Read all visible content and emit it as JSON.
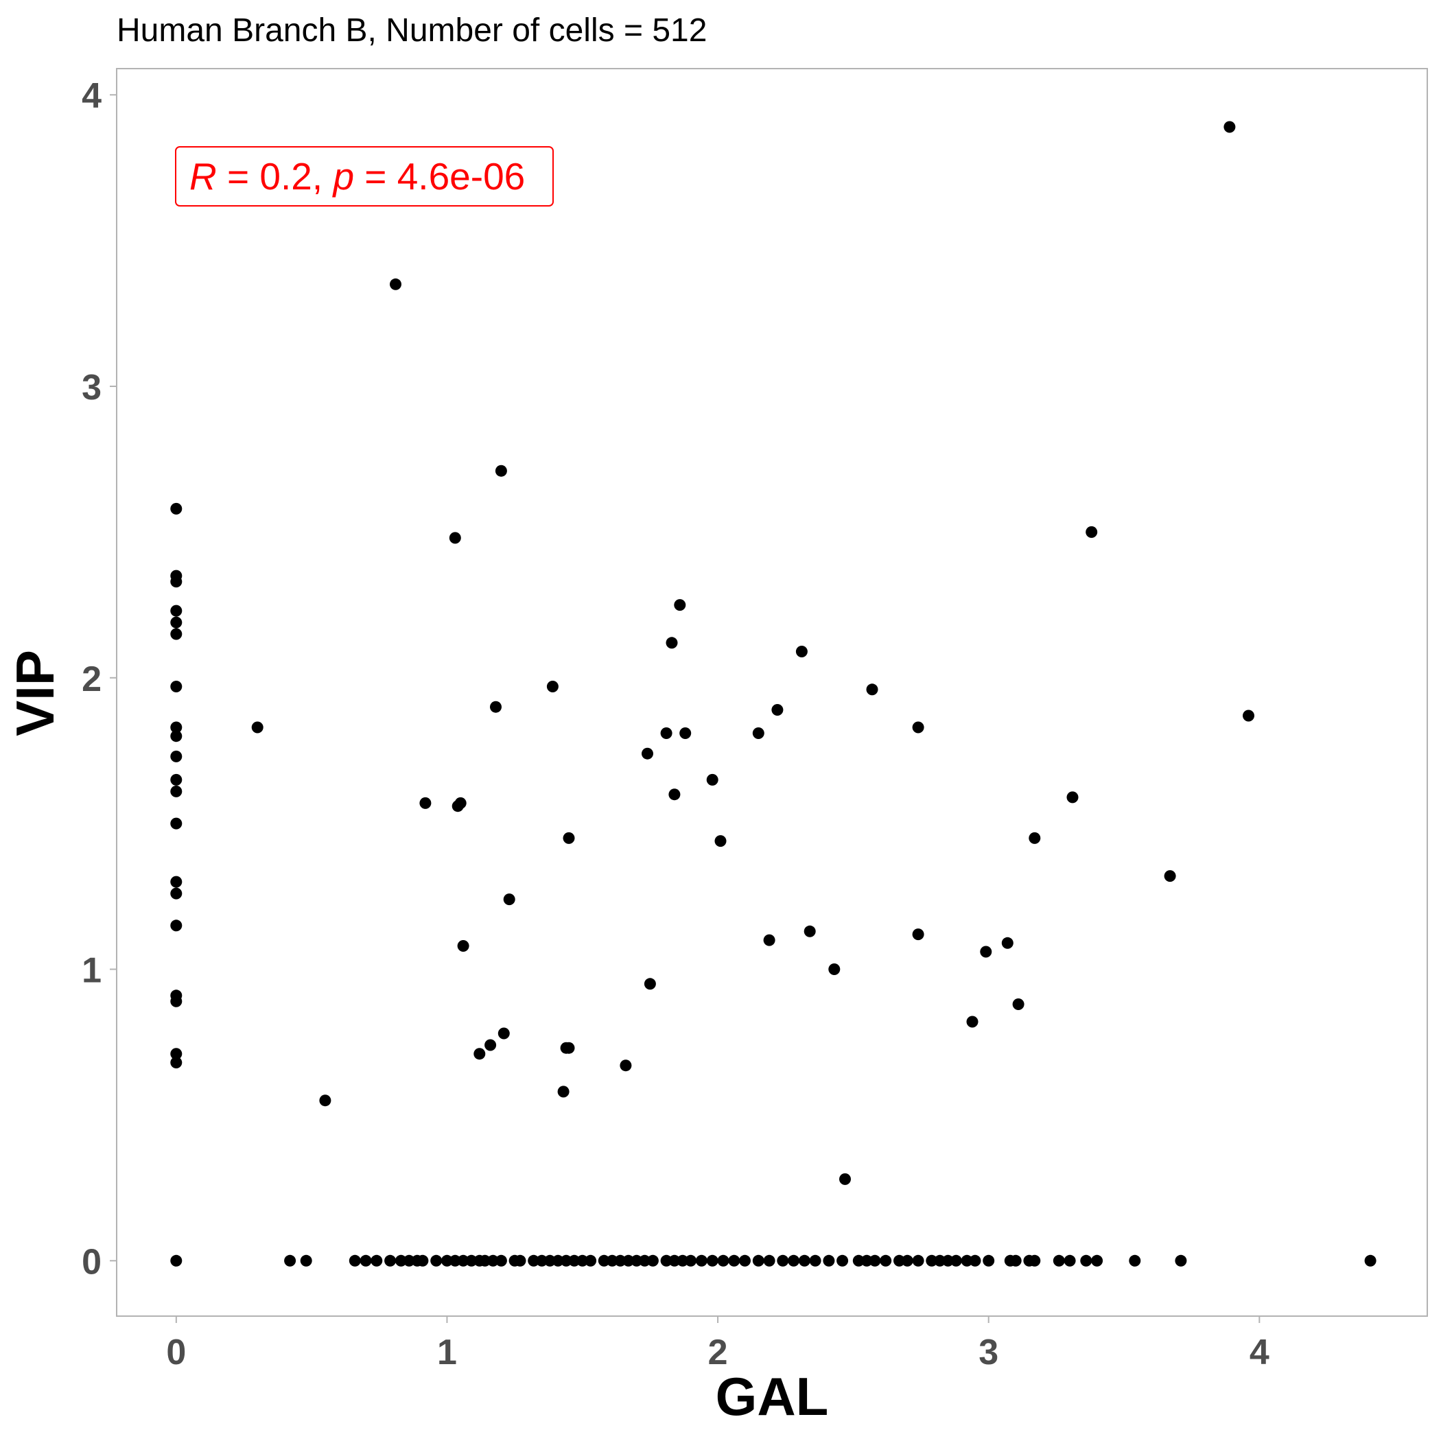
{
  "chart_data": {
    "type": "scatter",
    "title": "Human Branch B, Number of cells = 512",
    "xlabel": "GAL",
    "ylabel": "VIP",
    "xlim": [
      -0.22,
      4.62
    ],
    "ylim": [
      -0.19,
      4.09
    ],
    "x_ticks": [
      0,
      1,
      2,
      3,
      4
    ],
    "x_tick_labels": [
      "0",
      "1",
      "2",
      "3",
      "4"
    ],
    "y_ticks": [
      0,
      1,
      2,
      3,
      4
    ],
    "y_tick_labels": [
      "0",
      "1",
      "2",
      "3",
      "4"
    ],
    "grid": false,
    "point_color": "#000000",
    "annotation": {
      "r_symbol": "R",
      "r_value": " = 0.2, ",
      "p_symbol": "p",
      "p_value": " = 4.6e-06",
      "color": "#ff0000"
    },
    "points": [
      [
        0,
        2.58
      ],
      [
        0,
        2.35
      ],
      [
        0,
        2.33
      ],
      [
        0,
        2.23
      ],
      [
        0,
        2.19
      ],
      [
        0,
        2.15
      ],
      [
        0,
        1.97
      ],
      [
        0,
        1.83
      ],
      [
        0,
        1.8
      ],
      [
        0,
        1.73
      ],
      [
        0,
        1.65
      ],
      [
        0,
        1.61
      ],
      [
        0,
        1.5
      ],
      [
        0,
        1.3
      ],
      [
        0,
        1.26
      ],
      [
        0,
        1.15
      ],
      [
        0,
        0.91
      ],
      [
        0,
        0.89
      ],
      [
        0,
        0.71
      ],
      [
        0,
        0.68
      ],
      [
        0,
        0
      ],
      [
        0.3,
        1.83
      ],
      [
        0.55,
        0.55
      ],
      [
        0.81,
        3.35
      ],
      [
        0.92,
        1.57
      ],
      [
        1.03,
        2.48
      ],
      [
        1.04,
        1.56
      ],
      [
        1.05,
        1.57
      ],
      [
        1.06,
        1.08
      ],
      [
        1.12,
        0.71
      ],
      [
        1.16,
        0.74
      ],
      [
        1.18,
        1.9
      ],
      [
        1.2,
        2.71
      ],
      [
        1.21,
        0.78
      ],
      [
        1.23,
        1.24
      ],
      [
        1.39,
        1.97
      ],
      [
        1.43,
        0.58
      ],
      [
        1.44,
        0.73
      ],
      [
        1.45,
        0.73
      ],
      [
        1.45,
        1.45
      ],
      [
        1.66,
        0.67
      ],
      [
        1.74,
        1.74
      ],
      [
        1.75,
        0.95
      ],
      [
        1.81,
        1.81
      ],
      [
        1.83,
        2.12
      ],
      [
        1.84,
        1.6
      ],
      [
        1.86,
        2.25
      ],
      [
        1.88,
        1.81
      ],
      [
        1.98,
        1.65
      ],
      [
        2.01,
        1.44
      ],
      [
        2.15,
        1.81
      ],
      [
        2.19,
        1.1
      ],
      [
        2.22,
        1.89
      ],
      [
        2.31,
        2.09
      ],
      [
        2.34,
        1.13
      ],
      [
        2.43,
        1.0
      ],
      [
        2.47,
        0.28
      ],
      [
        2.57,
        1.96
      ],
      [
        2.74,
        1.83
      ],
      [
        2.74,
        1.12
      ],
      [
        2.94,
        0.82
      ],
      [
        2.99,
        1.06
      ],
      [
        3.07,
        1.09
      ],
      [
        3.11,
        0.88
      ],
      [
        3.17,
        1.45
      ],
      [
        3.31,
        1.59
      ],
      [
        3.38,
        2.5
      ],
      [
        3.67,
        1.32
      ],
      [
        3.89,
        3.89
      ],
      [
        3.96,
        1.87
      ],
      [
        0.42,
        0
      ],
      [
        0.48,
        0
      ],
      [
        0.66,
        0
      ],
      [
        0.7,
        0
      ],
      [
        0.74,
        0
      ],
      [
        0.79,
        0
      ],
      [
        0.83,
        0
      ],
      [
        0.86,
        0
      ],
      [
        0.89,
        0
      ],
      [
        0.91,
        0
      ],
      [
        0.96,
        0
      ],
      [
        1.0,
        0
      ],
      [
        1.03,
        0
      ],
      [
        1.06,
        0
      ],
      [
        1.09,
        0
      ],
      [
        1.12,
        0
      ],
      [
        1.14,
        0
      ],
      [
        1.17,
        0
      ],
      [
        1.2,
        0
      ],
      [
        1.25,
        0
      ],
      [
        1.27,
        0
      ],
      [
        1.32,
        0
      ],
      [
        1.35,
        0
      ],
      [
        1.38,
        0
      ],
      [
        1.41,
        0
      ],
      [
        1.44,
        0
      ],
      [
        1.47,
        0
      ],
      [
        1.5,
        0
      ],
      [
        1.53,
        0
      ],
      [
        1.58,
        0
      ],
      [
        1.61,
        0
      ],
      [
        1.64,
        0
      ],
      [
        1.67,
        0
      ],
      [
        1.7,
        0
      ],
      [
        1.73,
        0
      ],
      [
        1.76,
        0
      ],
      [
        1.81,
        0
      ],
      [
        1.84,
        0
      ],
      [
        1.87,
        0
      ],
      [
        1.9,
        0
      ],
      [
        1.94,
        0
      ],
      [
        1.98,
        0
      ],
      [
        2.02,
        0
      ],
      [
        2.06,
        0
      ],
      [
        2.1,
        0
      ],
      [
        2.15,
        0
      ],
      [
        2.19,
        0
      ],
      [
        2.24,
        0
      ],
      [
        2.28,
        0
      ],
      [
        2.32,
        0
      ],
      [
        2.36,
        0
      ],
      [
        2.41,
        0
      ],
      [
        2.46,
        0
      ],
      [
        2.52,
        0
      ],
      [
        2.55,
        0
      ],
      [
        2.58,
        0
      ],
      [
        2.62,
        0
      ],
      [
        2.67,
        0
      ],
      [
        2.7,
        0
      ],
      [
        2.74,
        0
      ],
      [
        2.79,
        0
      ],
      [
        2.82,
        0
      ],
      [
        2.85,
        0
      ],
      [
        2.88,
        0
      ],
      [
        2.92,
        0
      ],
      [
        2.95,
        0
      ],
      [
        3.0,
        0
      ],
      [
        3.08,
        0
      ],
      [
        3.1,
        0
      ],
      [
        3.15,
        0
      ],
      [
        3.17,
        0
      ],
      [
        3.26,
        0
      ],
      [
        3.3,
        0
      ],
      [
        3.36,
        0
      ],
      [
        3.4,
        0
      ],
      [
        3.54,
        0
      ],
      [
        3.71,
        0
      ],
      [
        4.41,
        0
      ]
    ]
  }
}
